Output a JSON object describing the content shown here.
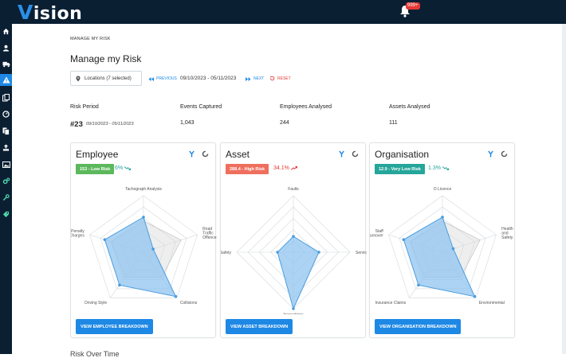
{
  "app": {
    "logo_letter": "V",
    "logo_rest": "ision",
    "notification_count": "999+"
  },
  "sidebar": {
    "icons": [
      "home-icon",
      "user-icon",
      "truck-icon",
      "warning-icon",
      "documents-icon",
      "dashboard-icon",
      "files-icon",
      "upload-icon",
      "image-icon",
      "cogs-icon",
      "wrench-icon",
      "tag-icon"
    ],
    "active_index": 3
  },
  "breadcrumb": "MANAGE MY RISK",
  "page_title": "Manage my Risk",
  "filters": {
    "locations_label": "Locations (7 selected)",
    "previous_label": "PREVIOUS",
    "date_range": "09/10/2023 - 05/11/2023",
    "next_label": "NEXT",
    "reset_label": "RESET"
  },
  "stats": {
    "risk_period_label": "Risk Period",
    "risk_period_number": "#23",
    "risk_period_range": "09/10/2023 - 05/11/2023",
    "events_label": "Events Captured",
    "events_value": "1,043",
    "employees_label": "Employees Analysed",
    "employees_value": "244",
    "assets_label": "Assets Analysed",
    "assets_value": "111"
  },
  "cards": [
    {
      "title": "Employee",
      "badge": "153 - Low Risk",
      "badge_color": "#5cb85c",
      "trend": "6%",
      "trend_color": "#26a69a",
      "trend_direction": "down",
      "axes": [
        {
          "label": [
            "Tachograph Analysis"
          ],
          "value": 0.62
        },
        {
          "label": [
            "Road",
            "Traffic",
            "Offences"
          ],
          "value": 0.18
        },
        {
          "label": [
            "Collisions"
          ],
          "value": 0.97
        },
        {
          "label": [
            "Driving Style"
          ],
          "value": 0.72
        },
        {
          "label": [
            "Penalty",
            "Charges"
          ],
          "value": 0.72
        }
      ],
      "benchmark": [
        0.55,
        0.7,
        0.55,
        0.55,
        0.6
      ],
      "button_label": "VIEW EMPLOYEE BREAKDOWN"
    },
    {
      "title": "Asset",
      "badge": "288.4 - High Risk",
      "badge_color": "#ef6f5e",
      "trend": "34.1%",
      "trend_color": "#e53935",
      "trend_direction": "up",
      "axes": [
        {
          "label": [
            "Faults"
          ],
          "value": 0.28
        },
        {
          "label": [
            "Services"
          ],
          "value": 0.45
        },
        {
          "label": [
            "Inspections"
          ],
          "value": 1.0
        },
        {
          "label": [
            "Safety"
          ],
          "value": 0.28
        }
      ],
      "benchmark": null,
      "button_label": "VIEW ASSET BREAKDOWN"
    },
    {
      "title": "Organisation",
      "badge": "12.9 - Very Low Risk",
      "badge_color": "#26a69a",
      "trend": "1.3%",
      "trend_color": "#26a69a",
      "trend_direction": "down",
      "axes": [
        {
          "label": [
            "O Licence"
          ],
          "value": 0.62
        },
        {
          "label": [
            "Health",
            "and",
            "Safety"
          ],
          "value": 0.2
        },
        {
          "label": [
            "Environmental"
          ],
          "value": 0.97
        },
        {
          "label": [
            "Insurance Claims"
          ],
          "value": 0.72
        },
        {
          "label": [
            "Staff",
            "Turnover"
          ],
          "value": 0.72
        }
      ],
      "benchmark": [
        0.55,
        0.7,
        0.55,
        0.55,
        0.6
      ],
      "button_label": "VIEW ORGANISATION BREAKDOWN"
    }
  ],
  "colors": {
    "radar_fill": "#90c4ef",
    "radar_stroke": "#4a9de0",
    "benchmark_fill": "#d9d9d9"
  },
  "bottom_heading": "Risk Over Time"
}
